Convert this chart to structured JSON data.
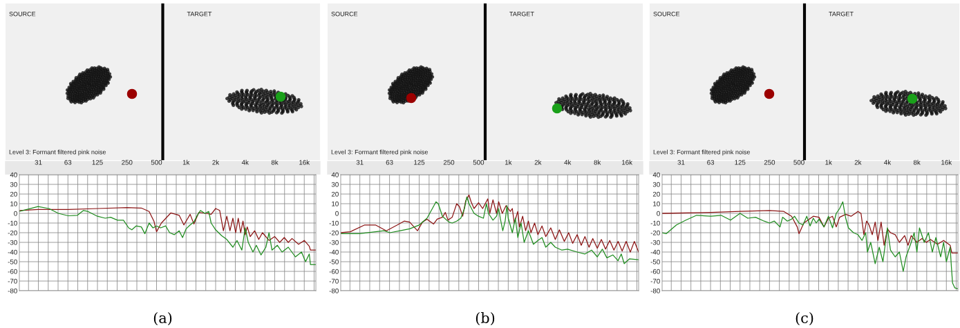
{
  "chart_data": [
    {
      "type": "line",
      "annotations": [
        "SOURCE",
        "TARGET",
        "Level 3: Formant filtered pink noise",
        "(a)"
      ],
      "xlim": [
        20,
        21000
      ],
      "ylim": [
        -80,
        40
      ],
      "log": "x",
      "grid": true,
      "xticks": [
        {
          "value": 24.8,
          "label": null
        },
        {
          "value": 31.25,
          "label": "31"
        },
        {
          "value": 39.37,
          "label": null
        },
        {
          "value": 49.61,
          "label": null
        },
        {
          "value": 62.5,
          "label": "63"
        },
        {
          "value": 78.75,
          "label": null
        },
        {
          "value": 99.21,
          "label": null
        },
        125,
        {
          "value": 157.5,
          "label": null
        },
        {
          "value": 198.4,
          "label": null
        },
        250,
        {
          "value": 315,
          "label": null
        },
        {
          "value": 396.9,
          "label": null
        },
        500,
        {
          "value": 630,
          "label": null
        },
        {
          "value": 793.7,
          "label": null
        },
        {
          "value": 1000,
          "label": "1k"
        },
        {
          "value": 1260,
          "label": null
        },
        {
          "value": 1587,
          "label": null
        },
        {
          "value": 2000,
          "label": "2k"
        },
        {
          "value": 2520,
          "label": null
        },
        {
          "value": 3175,
          "label": null
        },
        {
          "value": 4000,
          "label": "4k"
        },
        {
          "value": 5040,
          "label": null
        },
        {
          "value": 6350,
          "label": null
        },
        {
          "value": 8000,
          "label": "8k"
        },
        {
          "value": 10079,
          "label": null
        },
        {
          "value": 12699,
          "label": null
        },
        {
          "value": 16000,
          "label": "16k"
        },
        {
          "value": 20159,
          "label": null
        }
      ],
      "yticks": [
        -80,
        -70,
        -60,
        -50,
        -40,
        -30,
        -20,
        -10,
        0,
        10,
        20,
        30,
        40
      ],
      "series": [
        {
          "color": "#8b1414",
          "x": [
            20,
            31,
            63,
            125,
            250,
            350,
            420,
            470,
            500,
            560,
            700,
            850,
            950,
            1100,
            1200,
            1350,
            1600,
            1800,
            2000,
            2200,
            2400,
            2600,
            2800,
            3000,
            3200,
            3400,
            3600,
            3800,
            4000,
            4200,
            4500,
            5000,
            5500,
            6000,
            7000,
            8000,
            9000,
            10000,
            11000,
            12000,
            14000,
            16000,
            18000,
            18500,
            21000
          ],
          "values": [
            3,
            4,
            4,
            5,
            6,
            5.5,
            2,
            -8,
            -19,
            -10,
            0.5,
            -2,
            -12,
            -1,
            -11,
            1,
            0,
            -1,
            5,
            3,
            -18,
            -3,
            -18,
            -5,
            -20,
            -5,
            -20,
            -8,
            -22,
            -14,
            -24,
            -18,
            -27,
            -20,
            -28,
            -24,
            -30,
            -25,
            -30,
            -26,
            -32,
            -28,
            -34,
            -38,
            -38
          ]
        },
        {
          "color": "#1f8c1f",
          "x": [
            20,
            31,
            40,
            50,
            63,
            78,
            90,
            100,
            125,
            150,
            170,
            200,
            230,
            260,
            280,
            310,
            350,
            380,
            420,
            460,
            500,
            550,
            620,
            680,
            760,
            850,
            920,
            1000,
            1100,
            1200,
            1300,
            1400,
            1550,
            1700,
            1800,
            2000,
            2300,
            2600,
            3000,
            3300,
            3700,
            4000,
            4300,
            4800,
            5200,
            5800,
            6500,
            7000,
            7500,
            8500,
            9500,
            11000,
            13000,
            15000,
            16500,
            18000,
            18500,
            21000
          ],
          "values": [
            2,
            7,
            5,
            0,
            -2.5,
            -2,
            3,
            2,
            -3,
            -5,
            -4,
            -7,
            -7,
            -15,
            -17,
            -13,
            -14,
            -21,
            -10,
            -15,
            -13,
            -15,
            -13,
            -20,
            -22,
            -18,
            -25,
            -16,
            -12,
            -9,
            -2,
            3,
            0,
            2,
            -10,
            -17,
            -23,
            -27,
            -35,
            -28,
            -38,
            -15,
            -30,
            -40,
            -33,
            -43,
            -35,
            -20,
            -38,
            -33,
            -40,
            -35,
            -45,
            -40,
            -50,
            -42,
            -53,
            -53
          ]
        }
      ]
    },
    {
      "type": "line",
      "annotations": [
        "SOURCE",
        "TARGET",
        "Level 3: Formant filtered pink noise",
        "(b)"
      ],
      "xlim": [
        20,
        21000
      ],
      "ylim": [
        -80,
        40
      ],
      "log": "x",
      "grid": true,
      "xticks": [
        {
          "value": 24.8,
          "label": null
        },
        {
          "value": 31.25,
          "label": "31"
        },
        {
          "value": 39.37,
          "label": null
        },
        {
          "value": 49.61,
          "label": null
        },
        {
          "value": 62.5,
          "label": "63"
        },
        {
          "value": 78.75,
          "label": null
        },
        {
          "value": 99.21,
          "label": null
        },
        125,
        {
          "value": 157.5,
          "label": null
        },
        {
          "value": 198.4,
          "label": null
        },
        250,
        {
          "value": 315,
          "label": null
        },
        {
          "value": 396.9,
          "label": null
        },
        500,
        {
          "value": 630,
          "label": null
        },
        {
          "value": 793.7,
          "label": null
        },
        {
          "value": 1000,
          "label": "1k"
        },
        {
          "value": 1260,
          "label": null
        },
        {
          "value": 1587,
          "label": null
        },
        {
          "value": 2000,
          "label": "2k"
        },
        {
          "value": 2520,
          "label": null
        },
        {
          "value": 3175,
          "label": null
        },
        {
          "value": 4000,
          "label": "4k"
        },
        {
          "value": 5040,
          "label": null
        },
        {
          "value": 6350,
          "label": null
        },
        {
          "value": 8000,
          "label": "8k"
        },
        {
          "value": 10079,
          "label": null
        },
        {
          "value": 12699,
          "label": null
        },
        {
          "value": 16000,
          "label": "16k"
        },
        {
          "value": 20159,
          "label": null
        }
      ],
      "yticks": [
        -80,
        -70,
        -60,
        -50,
        -40,
        -30,
        -20,
        -10,
        0,
        10,
        20,
        30,
        40
      ],
      "series": [
        {
          "color": "#8b1414",
          "x": [
            20,
            25,
            35,
            45,
            58,
            75,
            88,
            100,
            120,
            135,
            150,
            175,
            190,
            215,
            230,
            245,
            270,
            300,
            320,
            345,
            370,
            400,
            420,
            450,
            500,
            550,
            620,
            650,
            700,
            760,
            800,
            870,
            950,
            1050,
            1100,
            1150,
            1250,
            1300,
            1400,
            1500,
            1600,
            1700,
            1850,
            2000,
            2200,
            2400,
            2700,
            3000,
            3300,
            3700,
            4100,
            4500,
            5000,
            5500,
            6000,
            6600,
            7200,
            8000,
            8800,
            9700,
            10700,
            11800,
            13000,
            14300,
            15700,
            17300,
            19000,
            21000
          ],
          "values": [
            -20,
            -19,
            -12,
            -12,
            -18,
            -12,
            -8,
            -9,
            -18,
            -9,
            -6,
            -11,
            -6,
            -4,
            1,
            -7,
            -4,
            10,
            7,
            -3,
            13,
            19,
            12,
            5,
            11,
            5,
            15,
            0,
            14,
            0,
            12,
            0,
            8,
            2,
            5,
            -10,
            2,
            -14,
            -3,
            -18,
            -8,
            -20,
            -10,
            -22,
            -13,
            -24,
            -15,
            -27,
            -17,
            -29,
            -20,
            -31,
            -22,
            -33,
            -24,
            -35,
            -26,
            -36,
            -27,
            -37,
            -28,
            -38,
            -29,
            -39,
            -29,
            -40,
            -29,
            -40
          ]
        },
        {
          "color": "#1f8c1f",
          "x": [
            20,
            31,
            45,
            55,
            63,
            80,
            100,
            125,
            150,
            170,
            185,
            195,
            215,
            250,
            270,
            300,
            330,
            360,
            380,
            400,
            450,
            500,
            560,
            600,
            630,
            700,
            760,
            800,
            830,
            880,
            930,
            970,
            1000,
            1100,
            1180,
            1250,
            1350,
            1450,
            1600,
            1800,
            2000,
            2200,
            2400,
            2700,
            3000,
            3500,
            4000,
            5000,
            6000,
            7000,
            8000,
            9000,
            10000,
            11500,
            13000,
            14000,
            15000,
            17000,
            21000
          ],
          "values": [
            -21,
            -21,
            -19,
            -18,
            -20,
            -18,
            -16,
            -12,
            -5,
            5,
            12,
            10,
            -3,
            -9,
            -10,
            -8,
            -5,
            5,
            17,
            10,
            0,
            -3,
            -5,
            10,
            0,
            -7,
            -3,
            5,
            -5,
            -18,
            -8,
            8,
            -5,
            -20,
            -5,
            -25,
            -10,
            -30,
            -18,
            -32,
            -28,
            -25,
            -35,
            -30,
            -35,
            -38,
            -37,
            -40,
            -42,
            -38,
            -45,
            -37,
            -46,
            -43,
            -49,
            -42,
            -52,
            -47,
            -48
          ]
        }
      ]
    },
    {
      "type": "line",
      "annotations": [
        "SOURCE",
        "TARGET",
        "Level 3: Formant filtered pink noise",
        "(c)"
      ],
      "xlim": [
        20,
        21000
      ],
      "ylim": [
        -80,
        40
      ],
      "log": "x",
      "grid": true,
      "xticks": [
        {
          "value": 24.8,
          "label": null
        },
        {
          "value": 31.25,
          "label": "31"
        },
        {
          "value": 39.37,
          "label": null
        },
        {
          "value": 49.61,
          "label": null
        },
        {
          "value": 62.5,
          "label": "63"
        },
        {
          "value": 78.75,
          "label": null
        },
        {
          "value": 99.21,
          "label": null
        },
        125,
        {
          "value": 157.5,
          "label": null
        },
        {
          "value": 198.4,
          "label": null
        },
        250,
        {
          "value": 315,
          "label": null
        },
        {
          "value": 396.9,
          "label": null
        },
        500,
        {
          "value": 630,
          "label": null
        },
        {
          "value": 793.7,
          "label": null
        },
        {
          "value": 1000,
          "label": "1k"
        },
        {
          "value": 1260,
          "label": null
        },
        {
          "value": 1587,
          "label": null
        },
        {
          "value": 2000,
          "label": "2k"
        },
        {
          "value": 2520,
          "label": null
        },
        {
          "value": 3175,
          "label": null
        },
        {
          "value": 4000,
          "label": "4k"
        },
        {
          "value": 5040,
          "label": null
        },
        {
          "value": 6350,
          "label": null
        },
        {
          "value": 8000,
          "label": "8k"
        },
        {
          "value": 10079,
          "label": null
        },
        {
          "value": 12699,
          "label": null
        },
        {
          "value": 16000,
          "label": "16k"
        },
        {
          "value": 20159,
          "label": null
        }
      ],
      "yticks": [
        -80,
        -70,
        -60,
        -50,
        -40,
        -30,
        -20,
        -10,
        0,
        10,
        20,
        30,
        40
      ],
      "series": [
        {
          "color": "#8b1414",
          "x": [
            20,
            63,
            125,
            250,
            350,
            420,
            480,
            500,
            560,
            700,
            800,
            900,
            1000,
            1100,
            1200,
            1300,
            1500,
            1700,
            2000,
            2150,
            2300,
            2450,
            2600,
            2800,
            3000,
            3200,
            3450,
            3700,
            4000,
            4300,
            4800,
            5300,
            6000,
            6500,
            7000,
            8000,
            9000,
            10000,
            11000,
            13000,
            15000,
            17500,
            18200,
            21000
          ],
          "values": [
            0,
            1,
            2,
            3,
            2,
            -3,
            -14,
            -21,
            -10,
            -3,
            -4,
            -14,
            -5,
            -3,
            -14,
            -4,
            -1,
            -3,
            2,
            0,
            -22,
            -8,
            -12,
            -22,
            -9,
            -28,
            -9,
            -33,
            -16,
            -20,
            -22,
            -30,
            -23,
            -33,
            -23,
            -30,
            -26,
            -30,
            -27,
            -32,
            -28,
            -33,
            -41,
            -41
          ]
        },
        {
          "color": "#1f8c1f",
          "x": [
            20,
            22,
            28,
            35,
            45,
            63,
            80,
            100,
            125,
            150,
            180,
            220,
            250,
            280,
            320,
            340,
            380,
            420,
            450,
            500,
            550,
            600,
            650,
            700,
            750,
            800,
            900,
            1000,
            1100,
            1200,
            1300,
            1400,
            1500,
            1600,
            1800,
            2000,
            2200,
            2400,
            2500,
            2700,
            3000,
            3300,
            3600,
            4000,
            4300,
            4800,
            5300,
            5800,
            6200,
            7000,
            7500,
            8000,
            8500,
            9500,
            10500,
            11500,
            12500,
            14000,
            15000,
            16000,
            17500,
            18000,
            18500,
            19500,
            21000
          ],
          "values": [
            -20,
            -21,
            -12,
            -7,
            -2,
            -3,
            -2,
            -7,
            0,
            -5,
            -4,
            -8,
            -10,
            -8,
            -14,
            -4,
            -8,
            -6,
            -3,
            -10,
            -12,
            -3,
            -13,
            -5,
            -10,
            -6,
            -14,
            -3,
            -15,
            0,
            5,
            12,
            -5,
            -15,
            -20,
            -22,
            -28,
            -20,
            -40,
            -30,
            -52,
            -35,
            -50,
            -15,
            -38,
            -45,
            -40,
            -60,
            -45,
            -30,
            -20,
            -40,
            -15,
            -30,
            -20,
            -40,
            -25,
            -45,
            -30,
            -50,
            -35,
            -55,
            -72,
            -77,
            -78
          ]
        }
      ]
    }
  ]
}
